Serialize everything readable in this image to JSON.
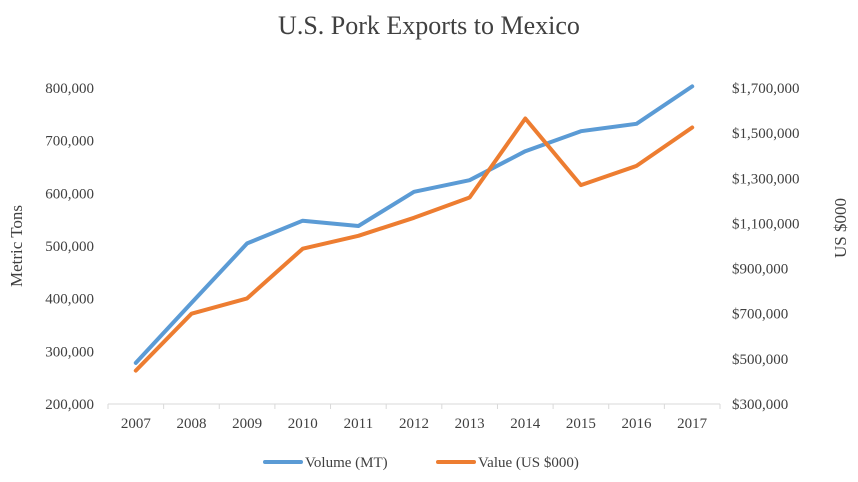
{
  "chart_data": {
    "type": "line",
    "title": "U.S. Pork Exports to Mexico",
    "categories": [
      "2007",
      "2008",
      "2009",
      "2010",
      "2011",
      "2012",
      "2013",
      "2014",
      "2015",
      "2016",
      "2017"
    ],
    "y_left": {
      "label": "Metric Tons",
      "min": 200000,
      "max": 800000,
      "ticks": [
        200000,
        300000,
        400000,
        500000,
        600000,
        700000,
        800000
      ],
      "tick_labels": [
        "200,000",
        "300,000",
        "400,000",
        "500,000",
        "600,000",
        "700,000",
        "800,000"
      ]
    },
    "y_right": {
      "label": "US $000",
      "min": 300000,
      "max": 1700000,
      "ticks": [
        300000,
        500000,
        700000,
        900000,
        1100000,
        1300000,
        1500000,
        1700000
      ],
      "tick_labels": [
        "$300,000",
        "$500,000",
        "$700,000",
        "$900,000",
        "$1,100,000",
        "$1,300,000",
        "$1,500,000",
        "$1,700,000"
      ]
    },
    "series": [
      {
        "name": "Volume (MT)",
        "axis": "left",
        "color": "#5B9BD5",
        "values": [
          278000,
          392000,
          505000,
          548000,
          538000,
          603000,
          625000,
          680000,
          718000,
          732000,
          803000
        ]
      },
      {
        "name": "Value (US $000)",
        "axis": "right",
        "color": "#ED7D31",
        "values": [
          448000,
          700000,
          768000,
          988000,
          1045000,
          1125000,
          1215000,
          1565000,
          1270000,
          1355000,
          1525000
        ]
      }
    ],
    "legend_position": "bottom",
    "grid": false
  }
}
